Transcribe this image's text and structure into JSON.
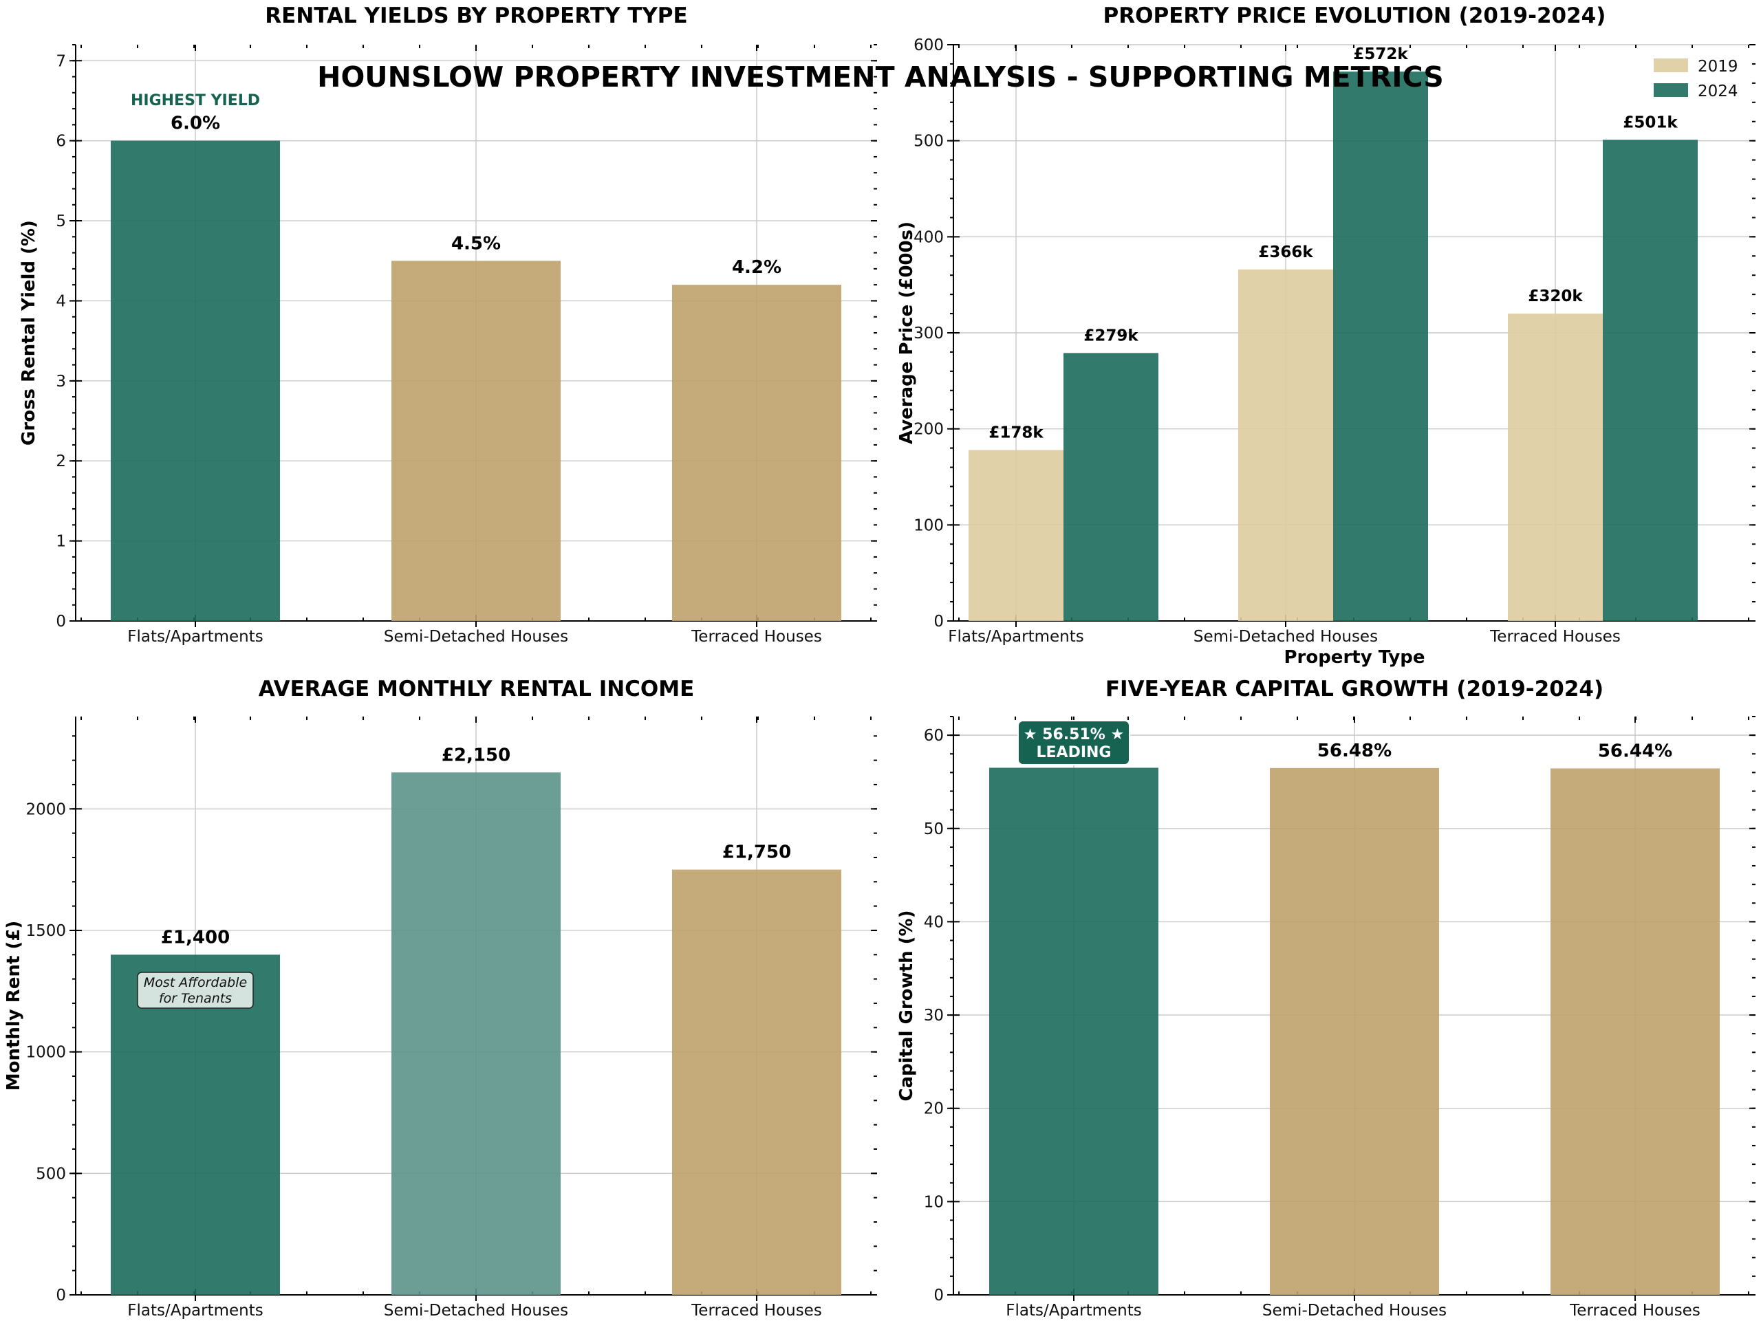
{
  "figure": {
    "suptitle": "HOUNSLOW PROPERTY INVESTMENT ANALYSIS - SUPPORTING METRICS"
  },
  "colors": {
    "green": "#1c6b5c",
    "tan": "#bfa16b",
    "tan_light": "#ddcca0",
    "teal_light": "#5c948a",
    "badge_green": "#176352",
    "note_fill": "#d5e3df"
  },
  "chart_data": [
    {
      "id": "yields",
      "type": "bar",
      "title": "RENTAL YIELDS BY PROPERTY TYPE",
      "xlabel": "",
      "ylabel": "Gross Rental Yield (%)",
      "categories": [
        "Flats/Apartments",
        "Semi-Detached Houses",
        "Terraced Houses"
      ],
      "values": [
        6.0,
        4.5,
        4.2
      ],
      "value_labels": [
        "6.0%",
        "4.5%",
        "4.2%"
      ],
      "bar_colors": [
        "green",
        "tan",
        "tan"
      ],
      "ylim": [
        0,
        7.2
      ],
      "yticks": [
        0,
        1,
        2,
        3,
        4,
        5,
        6,
        7
      ],
      "annotation": "HIGHEST YIELD",
      "grid": true
    },
    {
      "id": "prices",
      "type": "bar",
      "title": "PROPERTY PRICE EVOLUTION (2019-2024)",
      "xlabel": "Property Type",
      "ylabel": "Average Price (£000s)",
      "categories": [
        "Flats/Apartments",
        "Semi-Detached Houses",
        "Terraced Houses"
      ],
      "series": [
        {
          "name": "2019",
          "values": [
            178,
            366,
            320
          ],
          "labels": [
            "£178k",
            "£366k",
            "£320k"
          ],
          "color": "tan_light"
        },
        {
          "name": "2024",
          "values": [
            279,
            572,
            501
          ],
          "labels": [
            "£279k",
            "£572k",
            "£501k"
          ],
          "color": "green"
        }
      ],
      "ylim": [
        0,
        600
      ],
      "yticks": [
        0,
        100,
        200,
        300,
        400,
        500,
        600
      ],
      "legend": "top-right",
      "grid": true
    },
    {
      "id": "rent",
      "type": "bar",
      "title": "AVERAGE MONTHLY RENTAL INCOME",
      "xlabel": "",
      "ylabel": "Monthly Rent (£)",
      "categories": [
        "Flats/Apartments",
        "Semi-Detached Houses",
        "Terraced Houses"
      ],
      "values": [
        1400,
        2150,
        1750
      ],
      "value_labels": [
        "£1,400",
        "£2,150",
        "£1,750"
      ],
      "bar_colors": [
        "green",
        "teal_light",
        "tan"
      ],
      "ylim": [
        0,
        2380
      ],
      "yticks": [
        0,
        500,
        1000,
        1500,
        2000
      ],
      "annotation": [
        "Most Affordable",
        "for Tenants"
      ],
      "grid": true
    },
    {
      "id": "growth",
      "type": "bar",
      "title": "FIVE-YEAR CAPITAL GROWTH (2019-2024)",
      "xlabel": "",
      "ylabel": "Capital Growth (%)",
      "categories": [
        "Flats/Apartments",
        "Semi-Detached Houses",
        "Terraced Houses"
      ],
      "values": [
        56.51,
        56.48,
        56.44
      ],
      "value_labels": [
        "56.51%",
        "56.48%",
        "56.44%"
      ],
      "bar_colors": [
        "green",
        "tan",
        "tan"
      ],
      "ylim": [
        0,
        62
      ],
      "yticks": [
        0,
        10,
        20,
        30,
        40,
        50,
        60
      ],
      "annotation": [
        "★ 56.51% ★",
        "LEADING"
      ],
      "grid": true
    }
  ]
}
